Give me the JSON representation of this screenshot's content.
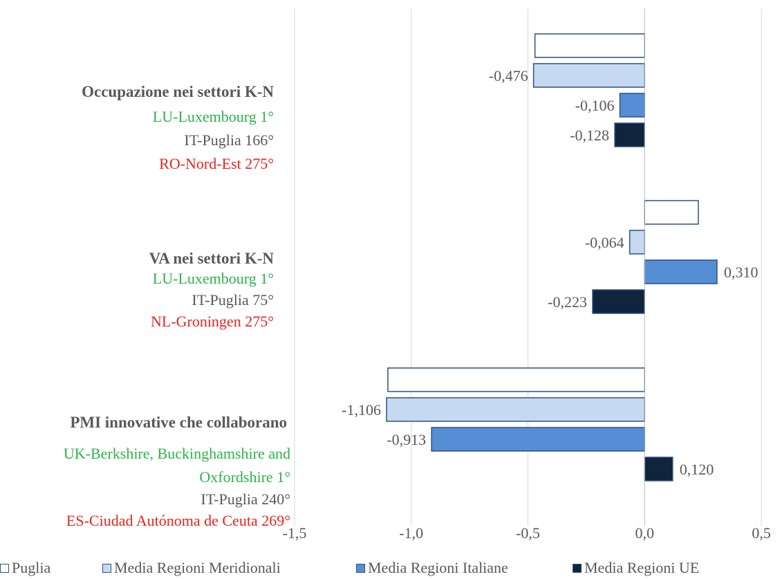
{
  "chart_data": {
    "type": "bar",
    "orientation": "horizontal",
    "xlim": [
      -1.5,
      0.5
    ],
    "xticks": [
      "-1,5",
      "-1,0",
      "-0,5",
      "0,0",
      "0,5"
    ],
    "xtick_values": [
      -1.5,
      -1.0,
      -0.5,
      0.0,
      0.5
    ],
    "grid": "vertical",
    "legend_position": "bottom",
    "categories": [
      {
        "title": "Occupazione nei settori K-N",
        "sublabels": [
          {
            "text": "LU-Luxembourg 1°",
            "color": "#2db34a"
          },
          {
            "text": "IT-Puglia 166°",
            "color": "#595959"
          },
          {
            "text": "RO-Nord-Est 275°",
            "color": "#e8231c"
          }
        ]
      },
      {
        "title": "VA nei settori K-N",
        "sublabels": [
          {
            "text": "LU-Luxembourg 1°",
            "color": "#2db34a"
          },
          {
            "text": "IT-Puglia 75°",
            "color": "#595959"
          },
          {
            "text": "NL-Groningen 275°",
            "color": "#e8231c"
          }
        ]
      },
      {
        "title": "PMI innovative che collaborano",
        "sublabels": [
          {
            "text": "UK-Berkshire, Buckinghamshire and",
            "color": "#2db34a"
          },
          {
            "text": "Oxfordshire 1°",
            "color": "#2db34a"
          },
          {
            "text": "IT-Puglia 240°",
            "color": "#595959"
          },
          {
            "text": "ES-Ciudad Autónoma de Ceuta 269°",
            "color": "#e8231c"
          }
        ]
      }
    ],
    "series": [
      {
        "name": "Puglia",
        "color": "#ffffff",
        "values": [
          -0.47,
          0.23,
          -1.1
        ],
        "labels": [
          "",
          "",
          ""
        ]
      },
      {
        "name": "Media Regioni Meridionali",
        "color": "#c5d9f1",
        "values": [
          -0.476,
          -0.064,
          -1.106
        ],
        "labels": [
          "-0,476",
          "-0,064",
          "-1,106"
        ]
      },
      {
        "name": "Media Regioni Italiane",
        "color": "#558ed5",
        "values": [
          -0.106,
          0.31,
          -0.913
        ],
        "labels": [
          "-0,106",
          "0,310",
          "-0,913"
        ]
      },
      {
        "name": "Media Regioni UE",
        "color": "#10243e",
        "values": [
          -0.128,
          -0.223,
          0.12
        ],
        "labels": [
          "-0,128",
          "-0,223",
          "0,120"
        ]
      }
    ]
  }
}
